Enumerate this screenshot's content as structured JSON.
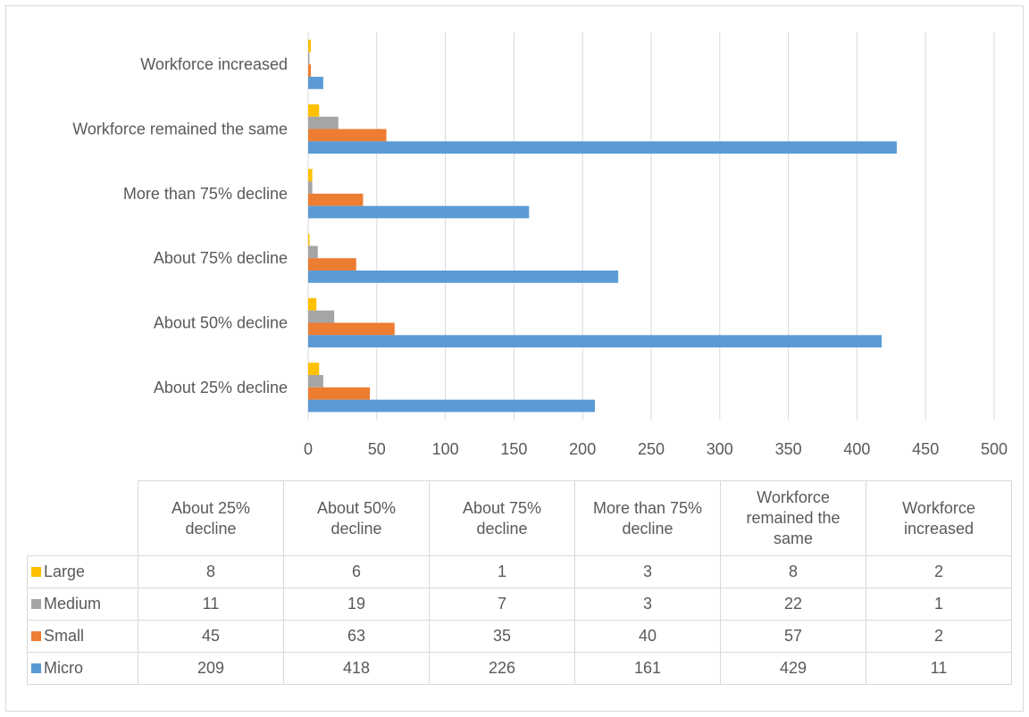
{
  "chart_data": {
    "type": "bar",
    "orientation": "horizontal",
    "categories": [
      "About 25% decline",
      "About 50% decline",
      "About 75% decline",
      "More than 75% decline",
      "Workforce remained the same",
      "Workforce increased"
    ],
    "table_headers": [
      "About 25%\ndecline",
      "About 50%\ndecline",
      "About 75%\ndecline",
      "More than 75%\ndecline",
      "Workforce\nremained the\nsame",
      "Workforce\nincreased"
    ],
    "series": [
      {
        "name": "Large",
        "color": "#ffc000",
        "values": [
          8,
          6,
          1,
          3,
          8,
          2
        ]
      },
      {
        "name": "Medium",
        "color": "#a5a5a5",
        "values": [
          11,
          19,
          7,
          3,
          22,
          1
        ]
      },
      {
        "name": "Small",
        "color": "#ed7d31",
        "values": [
          45,
          63,
          35,
          40,
          57,
          2
        ]
      },
      {
        "name": "Micro",
        "color": "#5b9bd5",
        "values": [
          209,
          418,
          226,
          161,
          429,
          11
        ]
      }
    ],
    "xlim": [
      0,
      500
    ],
    "xticks": [
      0,
      50,
      100,
      150,
      200,
      250,
      300,
      350,
      400,
      450,
      500
    ],
    "grid": true,
    "legend": "data-table"
  }
}
